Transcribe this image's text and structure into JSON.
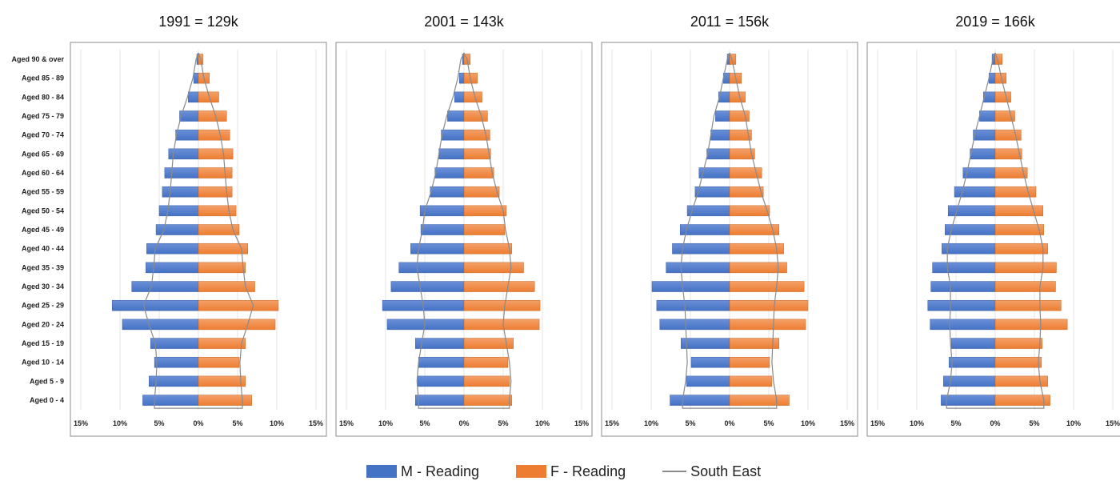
{
  "chart_data": {
    "type": "bar",
    "orientation": "horizontal",
    "categories": [
      "Aged 90 & over",
      "Aged 85 - 89",
      "Aged 80 - 84",
      "Aged 75 - 79",
      "Aged 70 - 74",
      "Aged 65 - 69",
      "Aged 60 - 64",
      "Aged 55 - 59",
      "Aged 50 - 54",
      "Aged 45 - 49",
      "Aged 40 - 44",
      "Aged 35 - 39",
      "Aged 30 - 34",
      "Aged 25 - 29",
      "Aged 20 - 24",
      "Aged 15 - 19",
      "Aged 10 - 14",
      "Aged 5 -  9",
      "Aged 0 -  4"
    ],
    "xlim": [
      -15,
      15
    ],
    "x_ticks": [
      "15%",
      "10%",
      "5%",
      "0%",
      "5%",
      "10%",
      "15%"
    ],
    "x_tick_values": [
      -15,
      -10,
      -5,
      0,
      5,
      10,
      15
    ],
    "colors": {
      "male": "#4472c4",
      "female": "#ed7d31",
      "outline": "#8a8a8a"
    },
    "legend": [
      {
        "label": "M - Reading",
        "kind": "bar",
        "color": "#4472c4"
      },
      {
        "label": "F - Reading",
        "kind": "bar",
        "color": "#ed7d31"
      },
      {
        "label": "South East",
        "kind": "line",
        "color": "#8a8a8a"
      }
    ],
    "legend_position": "bottom",
    "panels": [
      {
        "title": "1991 = 129k",
        "male": [
          0.2,
          0.6,
          1.3,
          2.4,
          2.9,
          3.8,
          4.3,
          4.6,
          5.0,
          5.4,
          6.6,
          6.7,
          8.5,
          11.0,
          9.7,
          6.1,
          5.6,
          6.3,
          7.1
        ],
        "female": [
          0.6,
          1.4,
          2.6,
          3.6,
          4.0,
          4.4,
          4.3,
          4.3,
          4.8,
          5.2,
          6.3,
          6.0,
          7.2,
          10.2,
          9.8,
          6.0,
          5.2,
          6.0,
          6.8
        ],
        "south_east": [
          0.3,
          0.7,
          1.4,
          2.2,
          2.8,
          3.2,
          3.4,
          3.6,
          3.9,
          4.4,
          5.5,
          5.7,
          6.0,
          7.0,
          6.3,
          5.5,
          5.3,
          5.4,
          5.6
        ]
      },
      {
        "title": "2001 = 143k",
        "male": [
          0.2,
          0.6,
          1.2,
          2.1,
          2.9,
          3.2,
          3.7,
          4.3,
          5.6,
          5.5,
          6.8,
          8.3,
          9.3,
          10.4,
          9.8,
          6.2,
          5.8,
          5.9,
          6.2
        ],
        "female": [
          0.8,
          1.7,
          2.3,
          3.0,
          3.3,
          3.4,
          3.8,
          4.5,
          5.4,
          5.2,
          6.1,
          7.6,
          9.0,
          9.7,
          9.6,
          6.3,
          5.6,
          5.8,
          6.1
        ],
        "south_east": [
          0.4,
          0.8,
          1.4,
          2.2,
          2.8,
          3.2,
          3.6,
          4.2,
          5.0,
          5.3,
          5.8,
          6.0,
          5.6,
          5.2,
          5.0,
          5.4,
          5.8,
          6.0,
          5.8
        ]
      },
      {
        "title": "2011 = 156k",
        "male": [
          0.3,
          0.8,
          1.4,
          1.8,
          2.4,
          2.9,
          3.9,
          4.4,
          5.4,
          6.3,
          7.3,
          8.1,
          9.9,
          9.3,
          8.9,
          6.2,
          4.9,
          5.5,
          7.6
        ],
        "female": [
          0.8,
          1.5,
          2.0,
          2.5,
          2.8,
          3.2,
          4.1,
          4.3,
          5.1,
          6.3,
          6.9,
          7.3,
          9.5,
          10.0,
          9.7,
          6.3,
          5.1,
          5.4,
          7.6
        ],
        "south_east": [
          0.3,
          0.8,
          1.3,
          2.0,
          2.4,
          2.8,
          3.4,
          4.0,
          4.8,
          5.5,
          6.0,
          6.2,
          6.0,
          5.7,
          5.6,
          5.5,
          5.4,
          5.6,
          6.0
        ]
      },
      {
        "title": "2019 = 166k",
        "male": [
          0.4,
          0.8,
          1.5,
          2.0,
          2.8,
          3.2,
          4.1,
          5.2,
          6.0,
          6.4,
          6.8,
          8.0,
          8.2,
          8.6,
          8.3,
          5.6,
          5.9,
          6.6,
          6.9
        ],
        "female": [
          0.9,
          1.4,
          2.0,
          2.5,
          3.3,
          3.4,
          4.1,
          5.2,
          6.1,
          6.2,
          6.7,
          7.8,
          7.7,
          8.4,
          9.2,
          6.0,
          5.9,
          6.7,
          7.0
        ],
        "south_east": [
          0.3,
          0.8,
          1.4,
          2.0,
          2.6,
          3.1,
          3.6,
          4.2,
          4.9,
          5.6,
          6.1,
          6.1,
          5.7,
          5.7,
          5.8,
          5.7,
          5.5,
          5.7,
          6.2
        ]
      }
    ]
  }
}
